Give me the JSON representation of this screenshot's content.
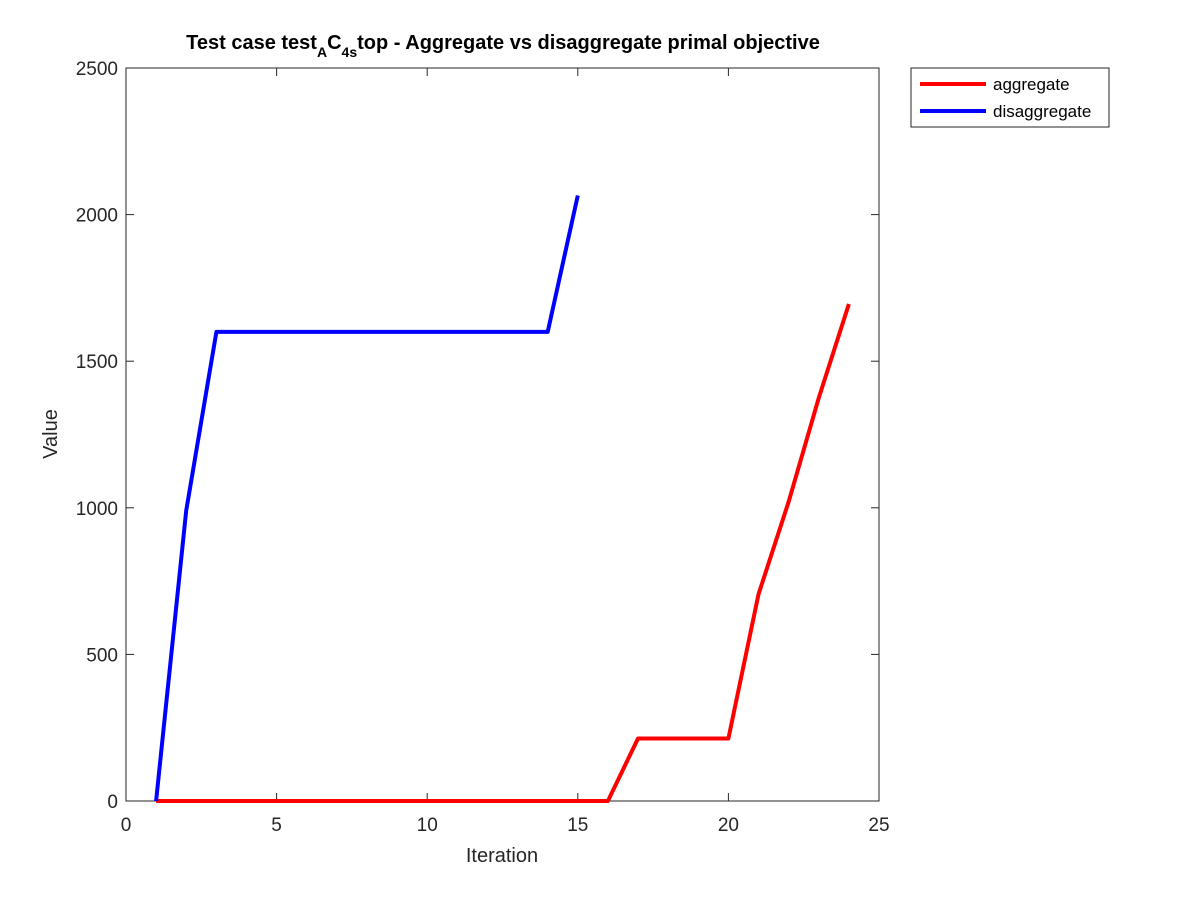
{
  "chart_data": {
    "type": "line",
    "title": {
      "main": "Test case test",
      "sub1": "A",
      "mid": "C",
      "sub2": "4s",
      "rest": "top - Aggregate vs disaggregate primal objective"
    },
    "xlabel": "Iteration",
    "ylabel": "Value",
    "xlim": [
      0,
      25
    ],
    "ylim": [
      0,
      2500
    ],
    "xticks": [
      0,
      5,
      10,
      15,
      20,
      25
    ],
    "yticks": [
      0,
      500,
      1000,
      1500,
      2000,
      2500
    ],
    "grid": false,
    "legend_position": "outside top-right",
    "series": [
      {
        "name": "aggregate",
        "color": "#ff0000",
        "x": [
          1,
          2,
          3,
          4,
          5,
          6,
          7,
          8,
          9,
          10,
          11,
          12,
          13,
          14,
          15,
          16,
          17,
          18,
          19,
          20,
          21,
          22,
          23,
          24
        ],
        "y": [
          0,
          0,
          0,
          0,
          0,
          0,
          0,
          0,
          0,
          0,
          0,
          0,
          0,
          0,
          0,
          0,
          213,
          213,
          213,
          213,
          705,
          1020,
          1375,
          1695
        ]
      },
      {
        "name": "disaggregate",
        "color": "#0000ff",
        "x": [
          1,
          2,
          3,
          4,
          5,
          6,
          7,
          8,
          9,
          10,
          11,
          12,
          13,
          14,
          15
        ],
        "y": [
          0,
          990,
          1600,
          1600,
          1600,
          1600,
          1600,
          1600,
          1600,
          1600,
          1600,
          1600,
          1600,
          1600,
          2065
        ]
      }
    ]
  }
}
